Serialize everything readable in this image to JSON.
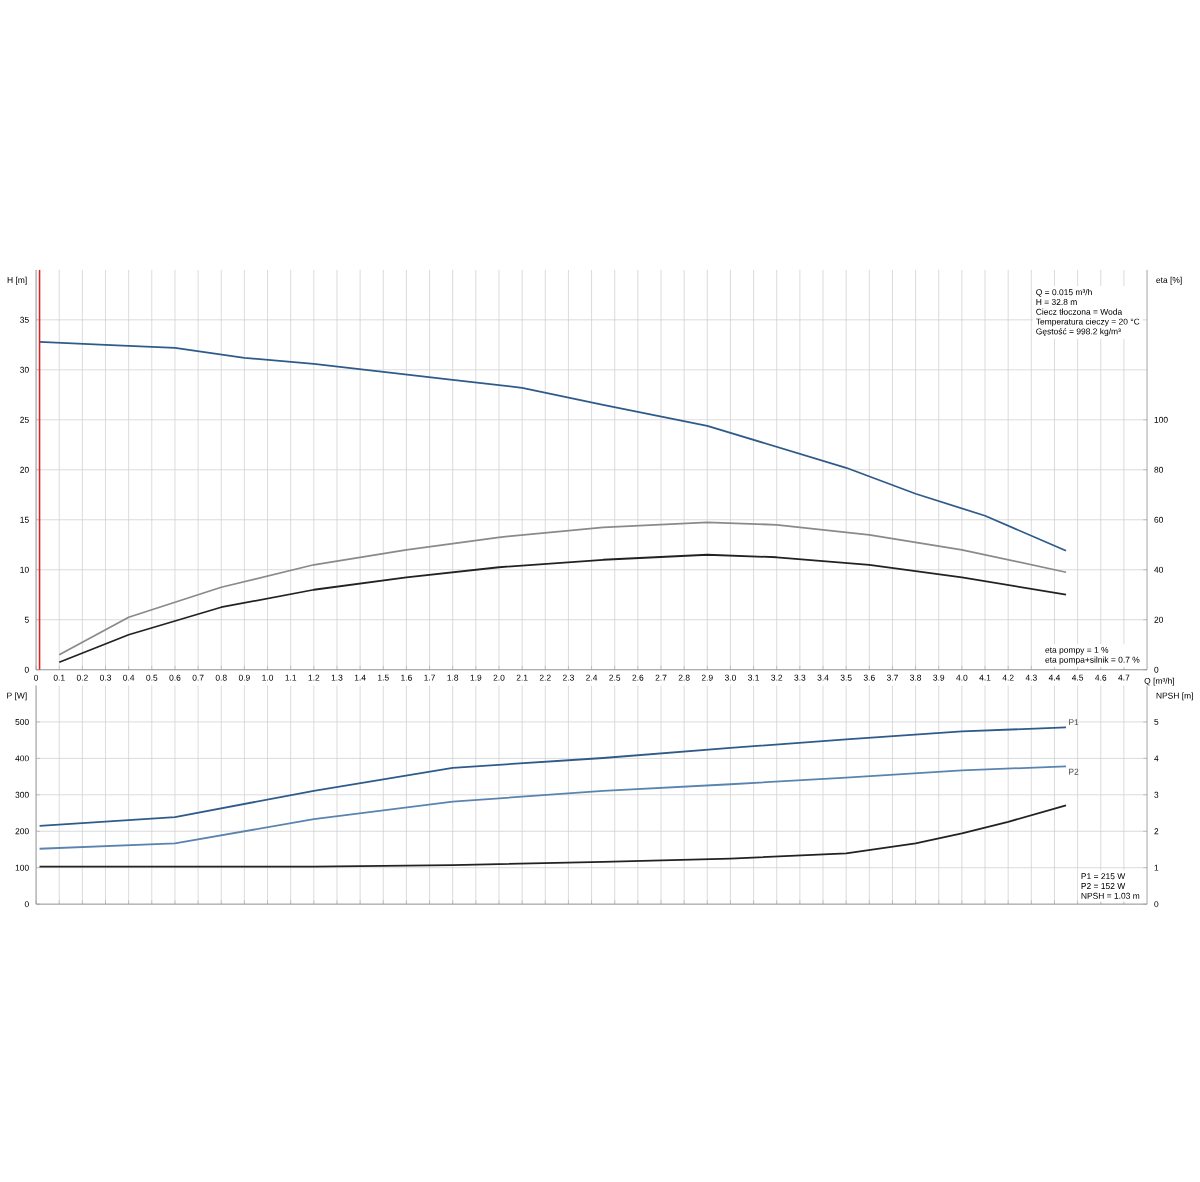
{
  "chart_data": [
    {
      "type": "line",
      "xlabel": "Q [m³/h]",
      "ylabel": "H [m]",
      "y2label": "eta [%]",
      "xlim": [
        0,
        4.8
      ],
      "xticks": [
        0,
        0.1,
        0.2,
        0.3,
        0.4,
        0.5,
        0.6,
        0.7,
        0.8,
        0.9,
        {
          "value": 1,
          "label": "1.0"
        },
        1.1,
        1.2,
        1.3,
        1.4,
        1.5,
        1.6,
        1.7,
        1.8,
        1.9,
        {
          "value": 2,
          "label": "2.0"
        },
        2.1,
        2.2,
        2.3,
        2.4,
        2.5,
        2.6,
        2.7,
        2.8,
        2.9,
        {
          "value": 3,
          "label": "3.0"
        },
        3.1,
        3.2,
        3.3,
        3.4,
        3.5,
        3.6,
        3.7,
        3.8,
        3.9,
        {
          "value": 4,
          "label": "4.0"
        },
        4.1,
        4.2,
        4.3,
        4.4,
        4.5,
        4.6,
        4.7
      ],
      "ylim": [
        0,
        40
      ],
      "yticks": [
        0,
        5,
        10,
        15,
        20,
        25,
        30,
        35
      ],
      "y2lim": [
        0,
        160
      ],
      "y2ticks": [
        0,
        20,
        40,
        60,
        80,
        100
      ],
      "grid": true,
      "series": [
        {
          "color": "#2f5b8a",
          "x": [
            0.015,
            0.3,
            0.6,
            0.9,
            1.2,
            1.5,
            1.8,
            2.1,
            2.45,
            2.9,
            3.2,
            3.5,
            3.8,
            4.1,
            4.45
          ],
          "values": [
            32.8,
            32.5,
            32.2,
            31.2,
            30.6,
            29.8,
            29.0,
            28.2,
            26.5,
            24.4,
            22.3,
            20.2,
            17.6,
            15.4,
            11.9
          ]
        },
        {
          "color": "#8a8a8a",
          "axis": "y2",
          "x": [
            0.1,
            0.4,
            0.8,
            1.2,
            1.6,
            2.0,
            2.45,
            2.9,
            3.2,
            3.6,
            4.0,
            4.45
          ],
          "values": [
            6,
            21,
            33,
            42,
            48,
            53,
            57,
            59,
            58,
            54,
            48,
            39
          ]
        },
        {
          "color": "#222222",
          "axis": "y2",
          "x": [
            0.1,
            0.4,
            0.8,
            1.2,
            1.6,
            2.0,
            2.45,
            2.9,
            3.2,
            3.6,
            4.0,
            4.45
          ],
          "values": [
            3,
            14,
            25,
            32,
            37,
            41,
            44,
            46,
            45,
            42,
            37,
            30
          ]
        }
      ],
      "ref_lines": [
        {
          "axis": "x",
          "value": 0.015,
          "color": "#e02020"
        }
      ],
      "annotations": [
        "Q = 0.015 m³/h",
        "H = 32.8 m",
        "Ciecz tłoczona = Woda",
        "Temperatura cieczy = 20 °C",
        "Gęstość = 998.2 kg/m³",
        "eta pompy = 1 %",
        "eta pompa+silnik = 0.7 %"
      ]
    },
    {
      "type": "line",
      "ylabel": "P [W]",
      "y2label": "NPSH [m]",
      "xlim": [
        0,
        4.8
      ],
      "xticks": [
        0,
        0.1,
        0.2,
        0.3,
        0.4,
        0.5,
        0.6,
        0.7,
        0.8,
        0.9,
        1,
        1.1,
        1.2,
        1.3,
        1.4,
        1.5,
        1.6,
        1.7,
        1.8,
        1.9,
        2,
        2.1,
        2.2,
        2.3,
        2.4,
        2.5,
        2.6,
        2.7,
        2.8,
        2.9,
        3,
        3.1,
        3.2,
        3.3,
        3.4,
        3.5,
        3.6,
        3.7,
        3.8,
        3.9,
        4,
        4.1,
        4.2,
        4.3,
        4.4,
        4.5,
        4.6,
        4.7
      ],
      "ylim": [
        0,
        600
      ],
      "yticks": [
        0,
        100,
        200,
        300,
        400,
        500
      ],
      "y2lim": [
        0,
        6
      ],
      "y2ticks": [
        0,
        1,
        2,
        3,
        4,
        5
      ],
      "grid": true,
      "tick_labels": "y",
      "series": [
        {
          "name": "P1",
          "color": "#2f5b8a",
          "x": [
            0.015,
            0.6,
            1.2,
            1.8,
            2.45,
            3.0,
            3.5,
            4.0,
            4.45
          ],
          "values": [
            215,
            239,
            311,
            374,
            401,
            429,
            452,
            474,
            485
          ]
        },
        {
          "name": "P2",
          "color": "#5a84b0",
          "x": [
            0.015,
            0.6,
            1.2,
            1.8,
            2.45,
            3.0,
            3.5,
            4.0,
            4.45
          ],
          "values": [
            152,
            167,
            233,
            281,
            311,
            329,
            347,
            367,
            378
          ]
        },
        {
          "color": "#222222",
          "axis": "y2",
          "x": [
            0.015,
            1.2,
            1.8,
            2.45,
            3.0,
            3.5,
            3.8,
            4.0,
            4.2,
            4.45
          ],
          "values": [
            1.03,
            1.03,
            1.07,
            1.16,
            1.25,
            1.39,
            1.67,
            1.94,
            2.26,
            2.71
          ]
        }
      ],
      "annotations": [
        "P1 = 215 W",
        "P2 = 152 W",
        "NPSH = 1.03 m"
      ]
    }
  ]
}
